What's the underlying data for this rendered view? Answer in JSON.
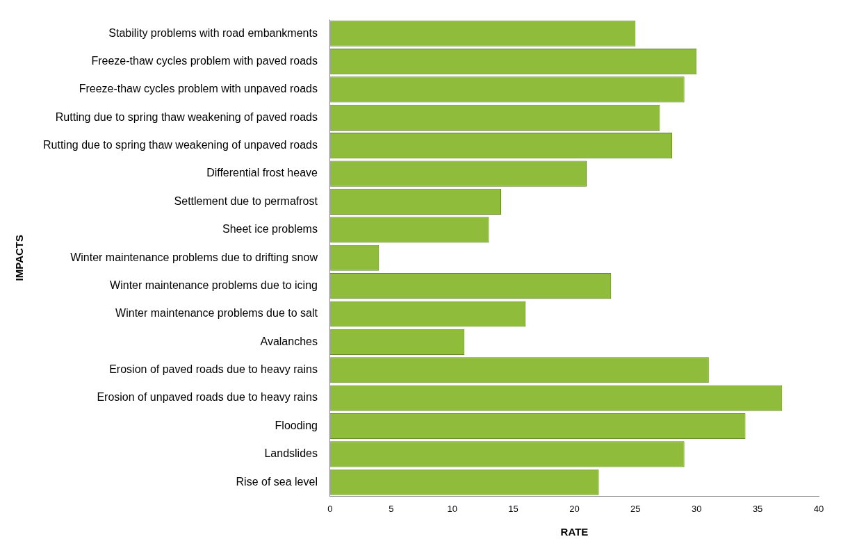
{
  "chart_data": {
    "type": "bar",
    "orientation": "horizontal",
    "xlabel": "RATE",
    "ylabel": "IMPACTS",
    "categories": [
      "Stability problems with road embankments",
      "Freeze-thaw cycles problem with paved roads",
      "Freeze-thaw cycles problem with unpaved roads",
      "Rutting due to spring thaw weakening of paved roads",
      "Rutting due to spring thaw weakening of unpaved roads",
      "Differential frost heave",
      "Settlement due to permafrost",
      "Sheet ice problems",
      "Winter maintenance problems due to drifting snow",
      "Winter maintenance problems due to icing",
      "Winter maintenance problems due to salt",
      "Avalanches",
      "Erosion of paved roads due to heavy rains",
      "Erosion of unpaved roads due to heavy rains",
      "Flooding",
      "Landslides",
      "Rise of sea level"
    ],
    "values": [
      25,
      30,
      29,
      27,
      28,
      21,
      14,
      13,
      4,
      23,
      16,
      11,
      31,
      37,
      34,
      29,
      22
    ],
    "color": "#8fbc3a",
    "xlim": [
      0,
      40
    ],
    "xticks": [
      0,
      5,
      10,
      15,
      20,
      25,
      30,
      35,
      40
    ],
    "grid": false
  }
}
